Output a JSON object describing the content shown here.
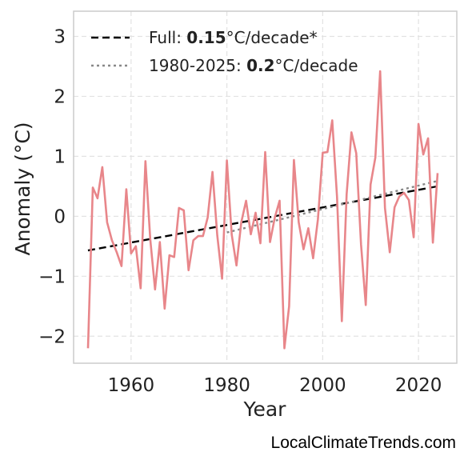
{
  "chart_data": {
    "type": "line",
    "xlabel": "Year",
    "ylabel": "Anomaly (°C)",
    "xlim": [
      1948,
      2028
    ],
    "ylim": [
      -2.45,
      3.42
    ],
    "xticks": [
      1960,
      1980,
      2000,
      2020
    ],
    "yticks": [
      -2,
      -1,
      0,
      1,
      2,
      3
    ],
    "ytick_labels": [
      "−2",
      "−1",
      "0",
      "1",
      "2",
      "3"
    ],
    "grid": true,
    "legend_position": "top-left",
    "series": [
      {
        "color": "#e8868a",
        "x": [
          1951,
          1952,
          1953,
          1954,
          1955,
          1956,
          1957,
          1958,
          1959,
          1960,
          1961,
          1962,
          1963,
          1964,
          1965,
          1966,
          1967,
          1968,
          1969,
          1970,
          1971,
          1972,
          1973,
          1974,
          1975,
          1976,
          1977,
          1978,
          1979,
          1980,
          1981,
          1982,
          1983,
          1984,
          1985,
          1986,
          1987,
          1988,
          1989,
          1990,
          1991,
          1992,
          1993,
          1994,
          1995,
          1996,
          1997,
          1998,
          1999,
          2000,
          2001,
          2002,
          2003,
          2004,
          2005,
          2006,
          2007,
          2008,
          2009,
          2010,
          2011,
          2012,
          2013,
          2014,
          2015,
          2016,
          2017,
          2018,
          2019,
          2020,
          2021,
          2022,
          2023,
          2024
        ],
        "values": [
          -2.2,
          0.48,
          0.3,
          0.82,
          -0.1,
          -0.4,
          -0.6,
          -0.83,
          0.45,
          -0.62,
          -0.5,
          -1.2,
          0.92,
          -0.38,
          -1.22,
          -0.43,
          -1.54,
          -0.65,
          -0.68,
          0.14,
          0.1,
          -0.9,
          -0.4,
          -0.33,
          -0.33,
          -0.02,
          0.74,
          -0.32,
          -1.04,
          0.93,
          -0.3,
          -0.82,
          -0.1,
          0.26,
          -0.3,
          0.06,
          -0.45,
          1.07,
          -0.43,
          -0.02,
          0.26,
          -2.2,
          -1.5,
          0.94,
          -0.1,
          -0.55,
          -0.2,
          -0.7,
          -0.05,
          1.06,
          1.07,
          1.6,
          0.32,
          -1.75,
          0.37,
          1.4,
          1.05,
          -0.47,
          -1.48,
          0.53,
          0.98,
          2.42,
          0.14,
          -0.6,
          0.15,
          0.33,
          0.39,
          0.27,
          -0.35,
          1.54,
          1.03,
          1.3,
          -0.44,
          0.72
        ]
      }
    ],
    "trendlines": [
      {
        "label_prefix": "Full: ",
        "label_value": "0.15",
        "label_suffix": "°C/decade*",
        "color": "#000000",
        "style": "dashed",
        "x": [
          1951,
          2024
        ],
        "y": [
          -0.57,
          0.5
        ]
      },
      {
        "label_prefix": "1980-2025: ",
        "label_value": "0.2",
        "label_suffix": "°C/decade",
        "color": "#888888",
        "style": "dotted",
        "x": [
          1980,
          2024
        ],
        "y": [
          -0.27,
          0.59
        ]
      }
    ]
  },
  "footer": {
    "watermark": "LocalClimateTrends.com"
  }
}
